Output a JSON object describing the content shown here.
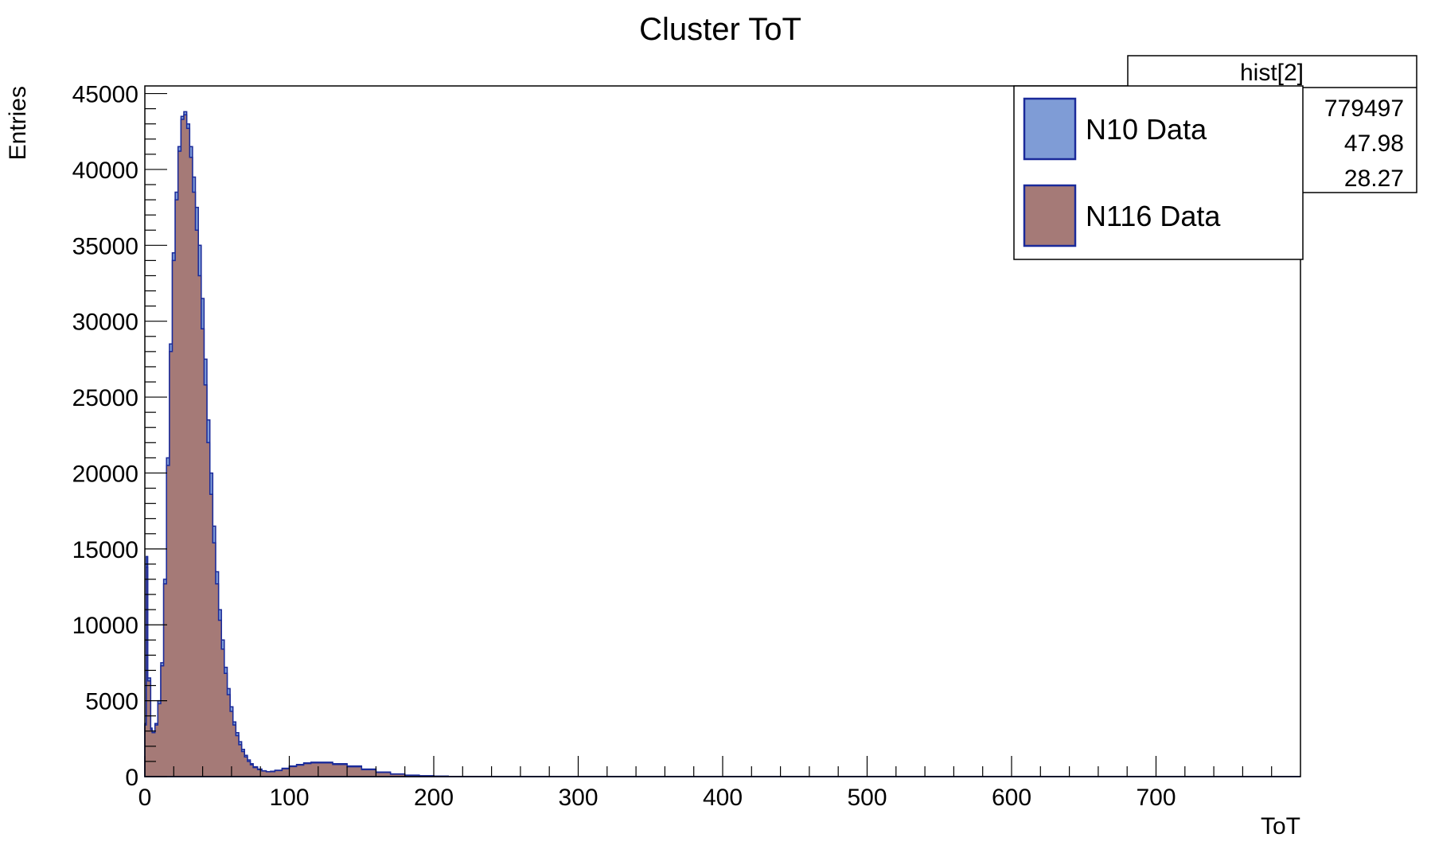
{
  "chart_data": {
    "type": "area",
    "title": "Cluster ToT",
    "xlabel": "ToT",
    "ylabel": "Entries",
    "xlim": [
      0,
      800
    ],
    "ylim": [
      0,
      45500
    ],
    "x_ticks": [
      0,
      100,
      200,
      300,
      400,
      500,
      600,
      700
    ],
    "y_ticks": [
      0,
      5000,
      10000,
      15000,
      20000,
      25000,
      30000,
      35000,
      40000,
      45000
    ],
    "legend_position": "top-right",
    "stats_box": {
      "title": "hist[2]",
      "values": [
        "779497",
        "47.98",
        "28.27"
      ]
    },
    "series": [
      {
        "name": "N10 Data",
        "color": "#7f9cd6",
        "line_color": "#1a2a9a",
        "x": [
          0,
          1,
          2,
          4,
          5,
          7,
          9,
          11,
          13,
          15,
          17,
          19,
          21,
          23,
          25,
          27,
          29,
          31,
          33,
          35,
          37,
          39,
          41,
          43,
          45,
          47,
          49,
          51,
          53,
          55,
          57,
          59,
          61,
          63,
          65,
          67,
          69,
          71,
          73,
          75,
          78,
          81,
          84,
          87,
          90,
          95,
          100,
          105,
          110,
          115,
          120,
          130,
          140,
          150,
          160,
          170,
          180,
          190,
          200,
          210,
          220,
          230,
          240,
          250,
          260,
          270,
          280,
          300,
          400,
          500,
          600,
          700,
          800
        ],
        "values": [
          3500,
          14500,
          6500,
          3200,
          3000,
          3500,
          5000,
          7500,
          13000,
          21000,
          28500,
          34500,
          38500,
          41500,
          43500,
          43800,
          43000,
          41500,
          39500,
          37500,
          35000,
          31500,
          27500,
          23500,
          20000,
          16500,
          13500,
          11000,
          9000,
          7200,
          5800,
          4600,
          3600,
          2900,
          2300,
          1800,
          1400,
          1100,
          850,
          650,
          500,
          390,
          330,
          350,
          420,
          550,
          700,
          800,
          900,
          950,
          950,
          850,
          700,
          500,
          300,
          180,
          100,
          60,
          30,
          15,
          8,
          4,
          2,
          0,
          0,
          0,
          0,
          0,
          0,
          0,
          0,
          0,
          0
        ]
      },
      {
        "name": "N116 Data",
        "color": "#a57a77",
        "line_color": "#1a2a9a",
        "x": [
          0,
          1,
          2,
          4,
          5,
          7,
          9,
          11,
          13,
          15,
          17,
          19,
          21,
          23,
          25,
          27,
          29,
          31,
          33,
          35,
          37,
          39,
          41,
          43,
          45,
          47,
          49,
          51,
          53,
          55,
          57,
          59,
          61,
          63,
          65,
          67,
          69,
          71,
          73,
          75,
          78,
          81,
          84,
          87,
          90,
          95,
          100,
          105,
          110,
          115,
          120,
          130,
          140,
          150,
          160,
          170,
          180,
          190,
          200,
          210,
          220,
          230,
          240,
          250,
          260,
          270,
          280,
          300,
          400,
          500,
          600,
          700,
          800
        ],
        "values": [
          3400,
          13800,
          6300,
          3100,
          2900,
          3400,
          4800,
          7300,
          12700,
          20500,
          28000,
          34000,
          38000,
          41200,
          43300,
          43600,
          42700,
          40800,
          38500,
          36000,
          33000,
          29500,
          25800,
          22000,
          18600,
          15400,
          12700,
          10300,
          8400,
          6800,
          5400,
          4300,
          3400,
          2700,
          2100,
          1650,
          1300,
          1000,
          780,
          600,
          460,
          370,
          320,
          330,
          400,
          520,
          660,
          760,
          860,
          900,
          900,
          800,
          650,
          460,
          280,
          160,
          90,
          50,
          25,
          12,
          6,
          3,
          1,
          0,
          0,
          0,
          0,
          0,
          0,
          0,
          0,
          0,
          0
        ]
      }
    ]
  }
}
